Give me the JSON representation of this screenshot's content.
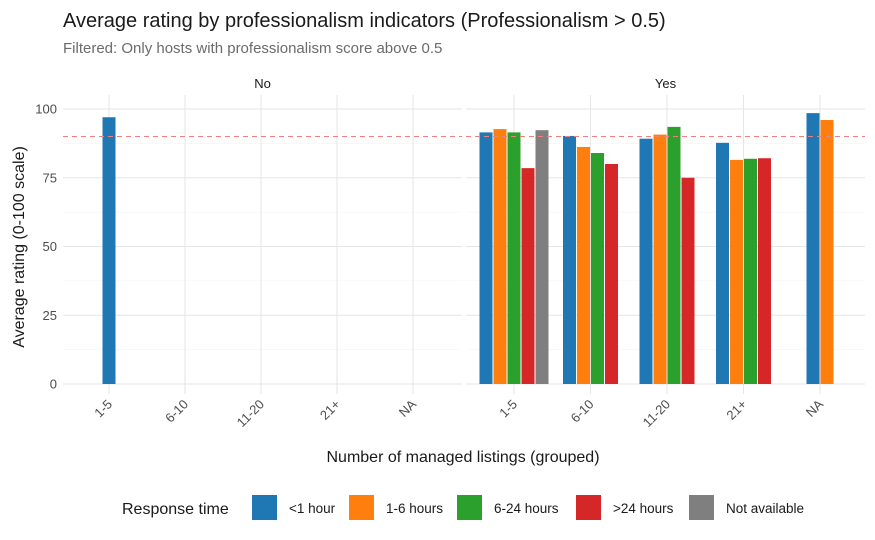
{
  "chart_data": {
    "type": "bar",
    "title": "Average rating by professionalism indicators (Professionalism > 0.5)",
    "subtitle": "Filtered: Only hosts with professionalism score above 0.5",
    "xlabel": "Number of managed listings (grouped)",
    "ylabel": "Average rating (0-100 scale)",
    "ylim": [
      0,
      104
    ],
    "yticks": [
      0,
      25,
      50,
      75,
      100
    ],
    "categories": [
      "1-5",
      "6-10",
      "11-20",
      "21+",
      "NA"
    ],
    "reference_line": {
      "value": 90,
      "color": "#f08080",
      "style": "dashed"
    },
    "legend": {
      "title": "Response time",
      "position": "bottom",
      "items": [
        {
          "name": "<1 hour",
          "color": "#1f77b4"
        },
        {
          "name": "1-6 hours",
          "color": "#ff7f0e"
        },
        {
          "name": "6-24 hours",
          "color": "#2ca02c"
        },
        {
          "name": ">24 hours",
          "color": "#d62728"
        },
        {
          "name": "Not available",
          "color": "#7f7f7f"
        }
      ]
    },
    "panels": [
      {
        "label": "No",
        "bars": [
          {
            "category": "1-5",
            "series": [
              "<1 hour"
            ],
            "values": [
              97
            ]
          }
        ]
      },
      {
        "label": "Yes",
        "bars": [
          {
            "category": "1-5",
            "series": [
              "<1 hour",
              "1-6 hours",
              "6-24 hours",
              ">24 hours",
              "Not available"
            ],
            "values": [
              91.5,
              92.7,
              91.5,
              78.5,
              92.3
            ]
          },
          {
            "category": "6-10",
            "series": [
              "<1 hour",
              "1-6 hours",
              "6-24 hours",
              ">24 hours"
            ],
            "values": [
              90.2,
              86.2,
              84.0,
              80.0
            ]
          },
          {
            "category": "11-20",
            "series": [
              "<1 hour",
              "1-6 hours",
              "6-24 hours",
              ">24 hours"
            ],
            "values": [
              89.2,
              90.7,
              93.5,
              75.0
            ]
          },
          {
            "category": "21+",
            "series": [
              "<1 hour",
              "1-6 hours",
              "6-24 hours",
              ">24 hours"
            ],
            "values": [
              87.7,
              81.5,
              81.9,
              82.1
            ]
          },
          {
            "category": "NA",
            "series": [
              "<1 hour",
              "1-6 hours"
            ],
            "values": [
              98.5,
              96.0
            ]
          }
        ]
      }
    ]
  }
}
